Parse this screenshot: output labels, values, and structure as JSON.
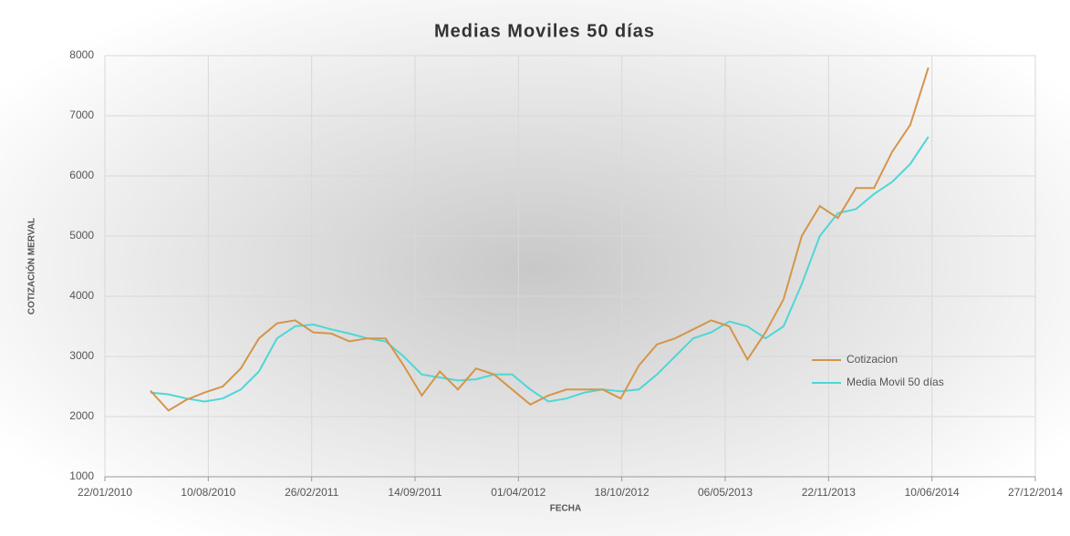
{
  "chart_data": {
    "type": "line",
    "title": "Medias Moviles 50 días",
    "x_label": "FECHA",
    "y_label": "COTIZACIÓN MERVAL",
    "x": [
      "20/04/2010",
      "25/05/2010",
      "29/06/2010",
      "03/08/2010",
      "07/09/2010",
      "12/10/2010",
      "16/11/2010",
      "21/12/2010",
      "25/01/2011",
      "01/03/2011",
      "05/04/2011",
      "10/05/2011",
      "14/06/2011",
      "19/07/2011",
      "23/08/2011",
      "27/09/2011",
      "01/11/2011",
      "06/12/2011",
      "10/01/2012",
      "14/02/2012",
      "20/03/2012",
      "24/04/2012",
      "29/05/2012",
      "03/07/2012",
      "07/08/2012",
      "11/09/2012",
      "16/10/2012",
      "20/11/2012",
      "25/12/2012",
      "29/01/2013",
      "05/03/2013",
      "09/04/2013",
      "14/05/2013",
      "18/06/2013",
      "23/07/2013",
      "27/08/2013",
      "01/10/2013",
      "05/11/2013",
      "10/12/2013",
      "14/01/2014",
      "18/02/2014",
      "25/03/2014",
      "29/04/2014",
      "03/06/2014"
    ],
    "series": [
      {
        "name": "Cotizacion",
        "color": "#d4954a",
        "values": [
          2430,
          2100,
          2280,
          2400,
          2500,
          2800,
          3300,
          3550,
          3600,
          3400,
          3380,
          3250,
          3300,
          3300,
          2850,
          2350,
          2750,
          2450,
          2800,
          2700,
          2450,
          2200,
          2350,
          2450,
          2450,
          2450,
          2300,
          2850,
          3200,
          3300,
          3450,
          3600,
          3500,
          2950,
          3400,
          3950,
          5000,
          5500,
          5300,
          5800,
          5800,
          6400,
          6850,
          7800
        ]
      },
      {
        "name": "Media Movil 50 días",
        "color": "#4fd6d6",
        "values": [
          2400,
          2370,
          2300,
          2250,
          2300,
          2450,
          2750,
          3300,
          3500,
          3530,
          3450,
          3380,
          3300,
          3250,
          3000,
          2700,
          2650,
          2600,
          2620,
          2700,
          2700,
          2450,
          2250,
          2300,
          2400,
          2450,
          2420,
          2450,
          2700,
          3000,
          3300,
          3400,
          3580,
          3500,
          3300,
          3500,
          4200,
          5000,
          5380,
          5450,
          5700,
          5900,
          6200,
          6650
        ]
      }
    ],
    "xlim": [
      "22/01/2010",
      "27/12/2014"
    ],
    "xticks": [
      "22/01/2010",
      "10/08/2010",
      "26/02/2011",
      "14/09/2011",
      "01/04/2012",
      "18/10/2012",
      "06/05/2013",
      "22/11/2013",
      "10/06/2014",
      "27/12/2014"
    ],
    "ylim": [
      1000,
      8000
    ],
    "yticks": [
      1000,
      2000,
      3000,
      4000,
      5000,
      6000,
      7000,
      8000
    ],
    "grid": true,
    "legend": "right"
  }
}
